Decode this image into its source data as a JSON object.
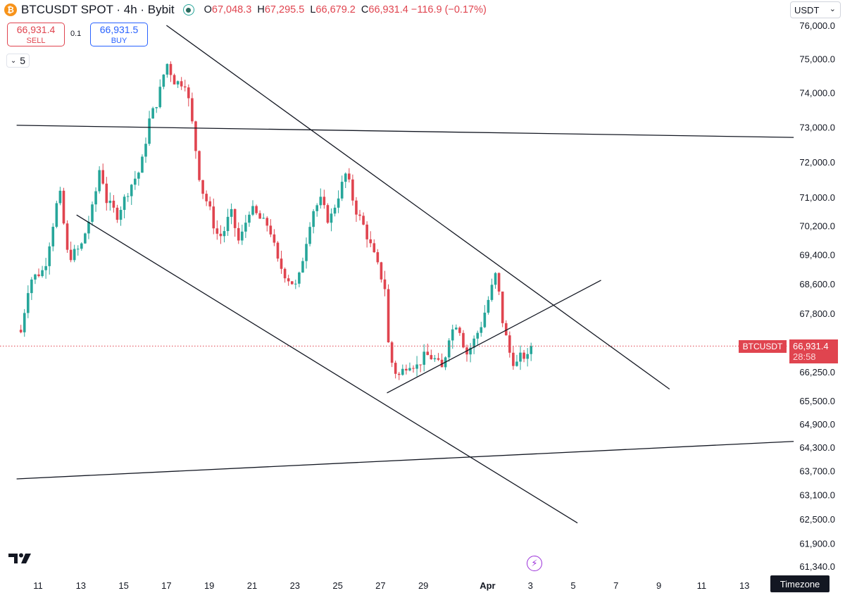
{
  "header": {
    "coin_glyph": "₿",
    "title": "BTCUSDT SPOT · 4h · Bybit",
    "ohlc": {
      "o_key": "O",
      "o": "67,048.3",
      "h_key": "H",
      "h": "67,295.5",
      "l_key": "L",
      "l": "66,679.2",
      "c_key": "C",
      "c": "66,931.4",
      "change": "−116.9 (−0.17%)"
    }
  },
  "trade": {
    "sell_price": "66,931.4",
    "sell_label": "SELL",
    "spread": "0.1",
    "buy_price": "66,931.5",
    "buy_label": "BUY"
  },
  "indicators_count": "5",
  "currency": "USDT",
  "timezone_label": "Timezone",
  "current_price": {
    "symbol": "BTCUSDT",
    "price": "66,931.4",
    "countdown": "28:58"
  },
  "colors": {
    "up": "#26a69a",
    "down": "#e0444f",
    "line": "#131722",
    "accent": "#2962ff"
  },
  "chart_data": {
    "type": "candlestick",
    "title": "BTCUSDT SPOT · 4h · Bybit",
    "y_scale": "log",
    "ylim": [
      61340,
      76200
    ],
    "y_ticks": [
      {
        "label": "76,000.0",
        "value": 76000
      },
      {
        "label": "75,000.0",
        "value": 75000
      },
      {
        "label": "74,000.0",
        "value": 74000
      },
      {
        "label": "73,000.0",
        "value": 73000
      },
      {
        "label": "72,000.0",
        "value": 72000
      },
      {
        "label": "71,000.0",
        "value": 71000
      },
      {
        "label": "70,200.0",
        "value": 70200
      },
      {
        "label": "69,400.0",
        "value": 69400
      },
      {
        "label": "68,600.0",
        "value": 68600
      },
      {
        "label": "67,800.0",
        "value": 67800
      },
      {
        "label": "66,250.0",
        "value": 66250
      },
      {
        "label": "65,500.0",
        "value": 65500
      },
      {
        "label": "64,900.0",
        "value": 64900
      },
      {
        "label": "64,300.0",
        "value": 64300
      },
      {
        "label": "63,700.0",
        "value": 63700
      },
      {
        "label": "63,100.0",
        "value": 63100
      },
      {
        "label": "62,500.0",
        "value": 62500
      },
      {
        "label": "61,900.0",
        "value": 61900
      },
      {
        "label": "61,340.0",
        "value": 61340
      }
    ],
    "x_ticks": [
      {
        "label": "11",
        "day": 0
      },
      {
        "label": "13",
        "day": 2
      },
      {
        "label": "15",
        "day": 4
      },
      {
        "label": "17",
        "day": 6
      },
      {
        "label": "19",
        "day": 8
      },
      {
        "label": "21",
        "day": 10
      },
      {
        "label": "23",
        "day": 12
      },
      {
        "label": "25",
        "day": 14
      },
      {
        "label": "27",
        "day": 16
      },
      {
        "label": "29",
        "day": 18
      },
      {
        "label": "Apr",
        "day": 21,
        "bold": true
      },
      {
        "label": "3",
        "day": 23
      },
      {
        "label": "5",
        "day": 25
      },
      {
        "label": "7",
        "day": 27
      },
      {
        "label": "9",
        "day": 29
      },
      {
        "label": "11",
        "day": 31
      },
      {
        "label": "13",
        "day": 33
      }
    ],
    "current_price": 66931.4,
    "trendlines": [
      {
        "name": "upper-channel",
        "p1": {
          "day": 6,
          "price": 76000
        },
        "p2": {
          "day": 29.5,
          "price": 65800
        }
      },
      {
        "name": "lower-channel",
        "p1": {
          "day": 1.8,
          "price": 70500
        },
        "p2": {
          "day": 25.2,
          "price": 62400
        }
      },
      {
        "name": "rising-support",
        "p1": {
          "day": 16.3,
          "price": 65700
        },
        "p2": {
          "day": 26.3,
          "price": 68700
        }
      },
      {
        "name": "horizontal-resistance",
        "p1": {
          "day": -1,
          "price": 73050
        },
        "p2": {
          "day": 35.3,
          "price": 72700
        }
      },
      {
        "name": "horizontal-support",
        "p1": {
          "day": -1,
          "price": 63500
        },
        "p2": {
          "day": 35.3,
          "price": 64450
        }
      }
    ],
    "anchors": [
      {
        "day": -0.8,
        "close": 67300
      },
      {
        "day": -0.4,
        "close": 68700
      },
      {
        "day": 0.3,
        "close": 69000
      },
      {
        "day": 1.0,
        "close": 71200
      },
      {
        "day": 1.4,
        "close": 69300
      },
      {
        "day": 2.0,
        "close": 69600
      },
      {
        "day": 2.6,
        "close": 70800
      },
      {
        "day": 2.9,
        "close": 71900
      },
      {
        "day": 3.2,
        "close": 70900
      },
      {
        "day": 3.7,
        "close": 70500
      },
      {
        "day": 4.3,
        "close": 71300
      },
      {
        "day": 4.8,
        "close": 71800
      },
      {
        "day": 5.2,
        "close": 73200
      },
      {
        "day": 5.6,
        "close": 73800
      },
      {
        "day": 6.0,
        "close": 74900
      },
      {
        "day": 6.4,
        "close": 74300
      },
      {
        "day": 6.9,
        "close": 74300
      },
      {
        "day": 7.2,
        "close": 73100
      },
      {
        "day": 7.6,
        "close": 71300
      },
      {
        "day": 8.0,
        "close": 70700
      },
      {
        "day": 8.3,
        "close": 70000
      },
      {
        "day": 8.6,
        "close": 69900
      },
      {
        "day": 9.0,
        "close": 70600
      },
      {
        "day": 9.4,
        "close": 69700
      },
      {
        "day": 9.9,
        "close": 70700
      },
      {
        "day": 10.5,
        "close": 70300
      },
      {
        "day": 10.8,
        "close": 70200
      },
      {
        "day": 11.2,
        "close": 69200
      },
      {
        "day": 11.6,
        "close": 68800
      },
      {
        "day": 12.1,
        "close": 68500
      },
      {
        "day": 12.4,
        "close": 69400
      },
      {
        "day": 12.8,
        "close": 70600
      },
      {
        "day": 13.2,
        "close": 70900
      },
      {
        "day": 13.6,
        "close": 70300
      },
      {
        "day": 14.0,
        "close": 71000
      },
      {
        "day": 14.4,
        "close": 71700
      },
      {
        "day": 14.8,
        "close": 70700
      },
      {
        "day": 15.2,
        "close": 70200
      },
      {
        "day": 15.5,
        "close": 69700
      },
      {
        "day": 15.8,
        "close": 69200
      },
      {
        "day": 16.2,
        "close": 68500
      },
      {
        "day": 16.4,
        "close": 66700
      },
      {
        "day": 16.8,
        "close": 66100
      },
      {
        "day": 17.3,
        "close": 66500
      },
      {
        "day": 17.7,
        "close": 66400
      },
      {
        "day": 18.1,
        "close": 66700
      },
      {
        "day": 18.5,
        "close": 66600
      },
      {
        "day": 18.9,
        "close": 66300
      },
      {
        "day": 19.2,
        "close": 67200
      },
      {
        "day": 19.6,
        "close": 67600
      },
      {
        "day": 20.0,
        "close": 66700
      },
      {
        "day": 20.3,
        "close": 67000
      },
      {
        "day": 20.7,
        "close": 67500
      },
      {
        "day": 21.0,
        "close": 68100
      },
      {
        "day": 21.4,
        "close": 68900
      },
      {
        "day": 21.7,
        "close": 67600
      },
      {
        "day": 22.0,
        "close": 66800
      },
      {
        "day": 22.3,
        "close": 66400
      },
      {
        "day": 22.6,
        "close": 66700
      },
      {
        "day": 22.9,
        "close": 66600
      },
      {
        "day": 23.1,
        "close": 66931
      }
    ]
  }
}
